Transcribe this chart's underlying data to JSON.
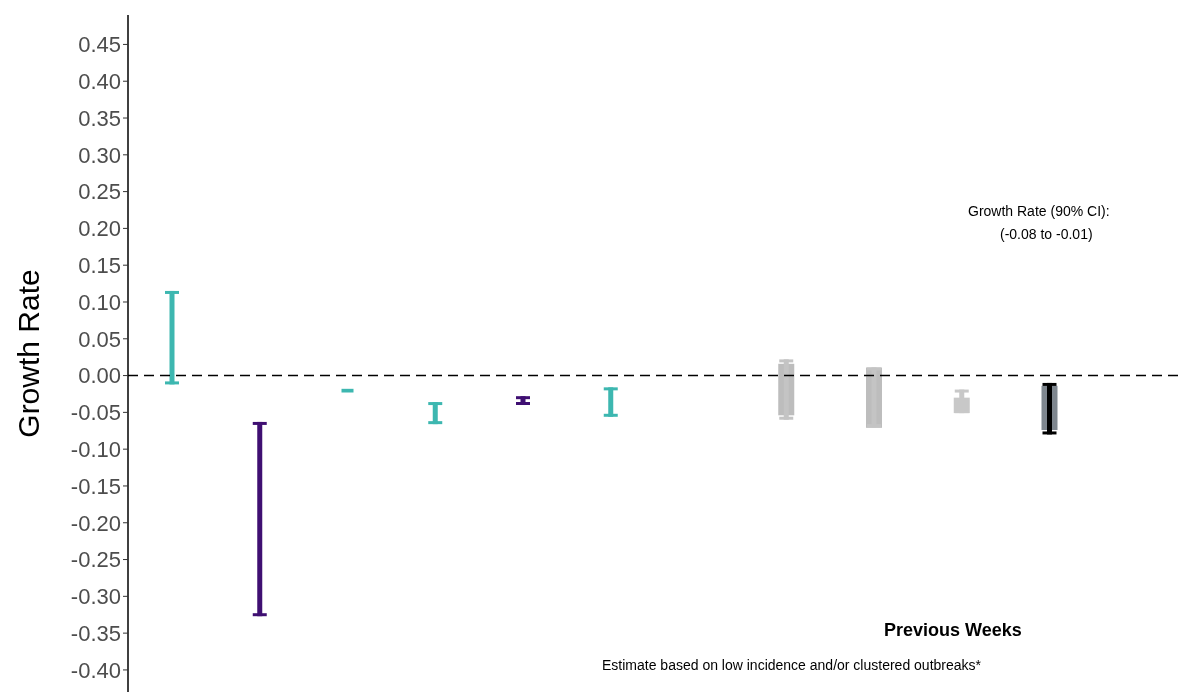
{
  "chart_data": {
    "type": "bar",
    "ylabel": "Growth Rate",
    "categories": [
      null,
      null,
      null,
      null,
      null,
      null,
      null,
      null,
      null,
      null,
      null,
      null
    ],
    "series": [
      {
        "type": "bar",
        "base": [
          null,
          null,
          null,
          null,
          null,
          null,
          null,
          -0.054,
          -0.071,
          -0.051,
          -0.074,
          null
        ],
        "values": [
          null,
          null,
          null,
          null,
          null,
          null,
          null,
          0.07,
          0.082,
          0.021,
          0.06,
          null
        ],
        "colors": [
          "#bdbdbd",
          "#bdbdbd",
          "#bdbdbd",
          "#bdbdbd",
          "#bdbdbd",
          "#bdbdbd",
          "#bdbdbd",
          "#bdbdbd",
          "#bdbdbd",
          "#c8c8c8",
          "#7f878f",
          "#bdbdbd"
        ]
      },
      {
        "type": "bar",
        "base": [
          -0.012,
          -0.327,
          -0.023,
          -0.066,
          -0.04,
          -0.056,
          null,
          -0.06,
          -0.07,
          -0.051,
          -0.08,
          null
        ],
        "values": [
          0.127,
          0.264,
          0.005,
          0.03,
          0.012,
          0.04,
          null,
          0.082,
          0.081,
          0.032,
          0.07,
          null
        ],
        "colors": [
          "#3db7b0",
          "#3f0f72",
          "#3db7b0",
          "#3db7b0",
          "#3f0f72",
          "#3db7b0",
          "#3db7b0",
          "#c4c4c4",
          "#c4c4c4",
          "#c8c8c8",
          "#000000",
          "#000000"
        ]
      }
    ],
    "ylim": [
      -0.43,
      0.49
    ],
    "yticks": [
      {
        "value": -0.4,
        "label": "-0.40"
      },
      {
        "value": -0.35,
        "label": "-0.35"
      },
      {
        "value": -0.3,
        "label": "-0.30"
      },
      {
        "value": -0.25,
        "label": "-0.25"
      },
      {
        "value": -0.2,
        "label": "-0.20"
      },
      {
        "value": -0.15,
        "label": "-0.15"
      },
      {
        "value": -0.1,
        "label": "-0.10"
      },
      {
        "value": -0.05,
        "label": "-0.05"
      },
      {
        "value": 0,
        "label": "0.00"
      },
      {
        "value": 0.05,
        "label": "0.05"
      },
      {
        "value": 0.1,
        "label": "0.10"
      },
      {
        "value": 0.15,
        "label": "0.15"
      },
      {
        "value": 0.2,
        "label": "0.20"
      },
      {
        "value": 0.25,
        "label": "0.25"
      },
      {
        "value": 0.3,
        "label": "0.30"
      },
      {
        "value": 0.35,
        "label": "0.35"
      },
      {
        "value": 0.4,
        "label": "0.40"
      },
      {
        "value": 0.45,
        "label": "0.45"
      }
    ],
    "tick_labels": "y",
    "grid": false,
    "legend": false,
    "ref_lines": [
      {
        "axis": "y",
        "value": 0,
        "color": "#000000",
        "line_style": "dashed"
      }
    ],
    "annotations": [
      "Growth Rate (90% CI):",
      "(-0.08 to -0.01)",
      "Previous Weeks",
      "Estimate based on low incidence and/or clustered outbreaks*"
    ]
  }
}
